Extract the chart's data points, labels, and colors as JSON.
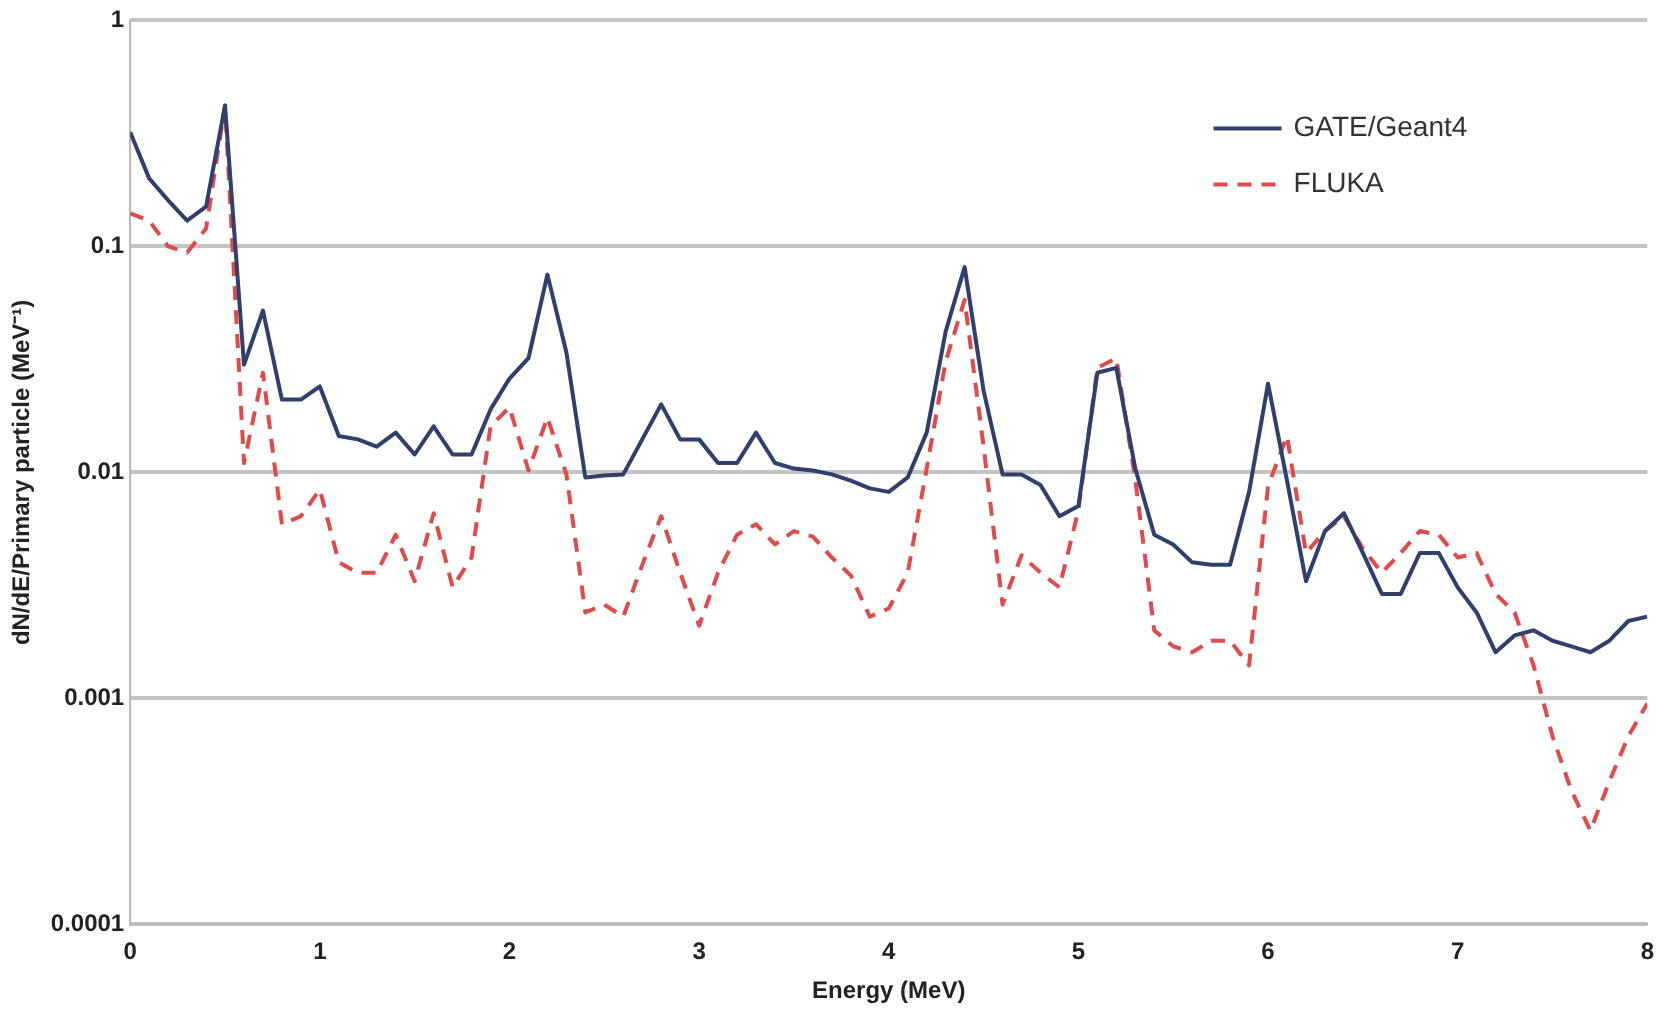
{
  "chart_data": {
    "type": "line",
    "xlabel": "Energy (MeV)",
    "ylabel": "dN/dE/Primary particle (MeV⁻¹)",
    "log": "y",
    "grid": "y",
    "legend": "top right",
    "marker": "none",
    "xlim": [
      0,
      8
    ],
    "xticks": [
      0,
      1,
      2,
      3,
      4,
      5,
      6,
      7,
      8
    ],
    "ylim": [
      0.0001,
      1
    ],
    "yticks": [
      0.0001,
      0.001,
      0.01,
      0.1,
      1
    ],
    "x": [
      0,
      0.1,
      0.2,
      0.3,
      0.4,
      0.5,
      0.6,
      0.7,
      0.8,
      0.9,
      1,
      1.1,
      1.2,
      1.3,
      1.4,
      1.5,
      1.6,
      1.7,
      1.8,
      1.9,
      2,
      2.1,
      2.2,
      2.3,
      2.4,
      2.5,
      2.6,
      2.7,
      2.8,
      2.9,
      3,
      3.1,
      3.2,
      3.3,
      3.4,
      3.5,
      3.6,
      3.7,
      3.8,
      3.9,
      4,
      4.1,
      4.2,
      4.3,
      4.4,
      4.5,
      4.6,
      4.7,
      4.8,
      4.9,
      5,
      5.1,
      5.2,
      5.3,
      5.4,
      5.5,
      5.6,
      5.7,
      5.8,
      5.9,
      6,
      6.1,
      6.2,
      6.3,
      6.4,
      6.5,
      6.6,
      6.7,
      6.8,
      6.9,
      7,
      7.1,
      7.2,
      7.3,
      7.4,
      7.5,
      7.6,
      7.7,
      7.8,
      7.9,
      8
    ],
    "series": [
      {
        "name": "GATE/Geant4",
        "color": "#2f3f6e",
        "line_style": "solid",
        "values": [
          0.32,
          0.2,
          0.16,
          0.13,
          0.15,
          0.42,
          0.03,
          0.052,
          0.021,
          0.021,
          0.024,
          0.0145,
          0.014,
          0.013,
          0.015,
          0.012,
          0.016,
          0.012,
          0.012,
          0.019,
          0.026,
          0.032,
          0.075,
          0.034,
          0.0095,
          0.0097,
          0.0098,
          0.014,
          0.02,
          0.014,
          0.014,
          0.011,
          0.011,
          0.015,
          0.011,
          0.0104,
          0.0102,
          0.0098,
          0.0092,
          0.0085,
          0.0082,
          0.0095,
          0.015,
          0.042,
          0.081,
          0.023,
          0.0098,
          0.0098,
          0.0088,
          0.0064,
          0.0071,
          0.0276,
          0.029,
          0.0104,
          0.0053,
          0.0048,
          0.004,
          0.0039,
          0.0039,
          0.0082,
          0.0247,
          0.0092,
          0.0033,
          0.0055,
          0.0066,
          0.0044,
          0.0029,
          0.0029,
          0.0044,
          0.0044,
          0.0031,
          0.0024,
          0.0016,
          0.0019,
          0.002,
          0.0018,
          0.0017,
          0.0016,
          0.0018,
          0.0022,
          0.0023
        ]
      },
      {
        "name": "FLUKA",
        "color": "#e04a4a",
        "line_style": "dashed",
        "values": [
          0.14,
          0.13,
          0.1,
          0.094,
          0.12,
          0.42,
          0.011,
          0.0276,
          0.0059,
          0.0064,
          0.0084,
          0.004,
          0.0036,
          0.0036,
          0.0053,
          0.0033,
          0.0066,
          0.0031,
          0.0042,
          0.016,
          0.0194,
          0.0102,
          0.0175,
          0.0098,
          0.0024,
          0.0026,
          0.0023,
          0.0039,
          0.0064,
          0.0036,
          0.0021,
          0.0036,
          0.0053,
          0.0059,
          0.0048,
          0.0055,
          0.0052,
          0.0042,
          0.0035,
          0.0023,
          0.0025,
          0.0036,
          0.0104,
          0.031,
          0.058,
          0.013,
          0.0026,
          0.0043,
          0.0036,
          0.0031,
          0.0068,
          0.029,
          0.032,
          0.0093,
          0.002,
          0.0017,
          0.0016,
          0.0018,
          0.0018,
          0.0014,
          0.0087,
          0.0145,
          0.0044,
          0.0055,
          0.0064,
          0.0046,
          0.0036,
          0.0044,
          0.0055,
          0.0053,
          0.0042,
          0.0044,
          0.0029,
          0.0024,
          0.0014,
          0.00068,
          0.00039,
          0.00026,
          0.00043,
          0.00068,
          0.00095
        ]
      }
    ]
  }
}
